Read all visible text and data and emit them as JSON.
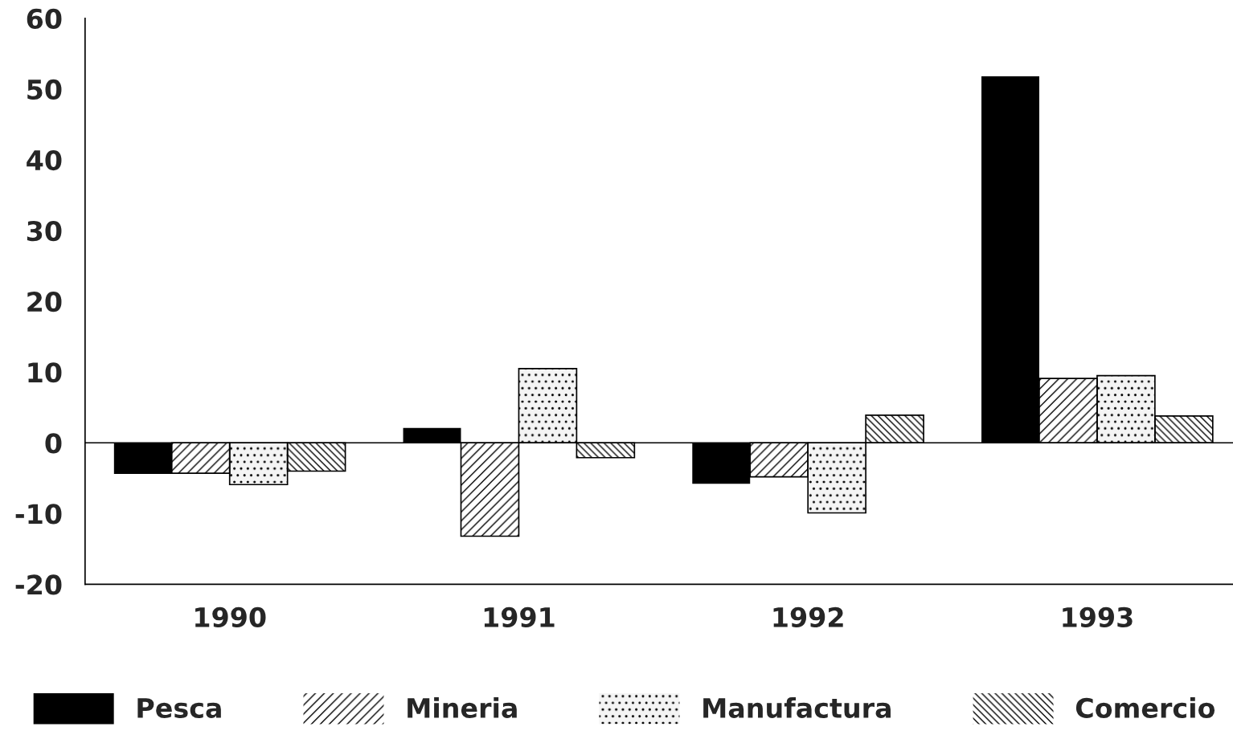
{
  "chart_data": {
    "type": "bar",
    "categories": [
      "1990",
      "1991",
      "1992",
      "1993"
    ],
    "series": [
      {
        "name": "Pesca",
        "color": "#000000",
        "values": [
          -4.4,
          2.1,
          -5.8,
          51.8
        ]
      },
      {
        "name": "Mineria",
        "color": "#ffffff",
        "values": [
          -4.3,
          -13.2,
          -4.8,
          9.1
        ]
      },
      {
        "name": "Manufactura",
        "color": "#f4f4f4",
        "values": [
          -5.9,
          10.5,
          -9.9,
          9.5
        ]
      },
      {
        "name": "Comercio",
        "color": "#ffffff",
        "values": [
          -4.0,
          -2.1,
          3.9,
          3.8
        ]
      }
    ],
    "ylim": [
      -20,
      60
    ],
    "yticks": [
      -20,
      -10,
      0,
      10,
      20,
      30,
      40,
      50,
      60
    ],
    "ref_lines": [
      {
        "axis": "y",
        "value": 0
      }
    ],
    "grid": false,
    "legend": "bottom"
  }
}
